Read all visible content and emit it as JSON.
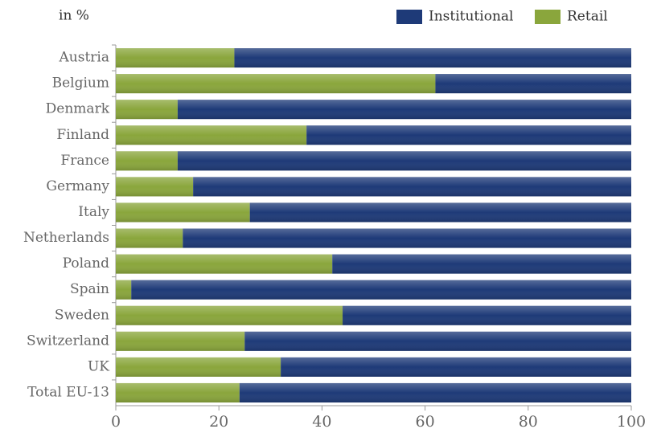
{
  "chart_data": {
    "type": "stacked-bar-horizontal",
    "y_axis_label": "in %",
    "categories": [
      "Austria",
      "Belgium",
      "Denmark",
      "Finland",
      "France",
      "Germany",
      "Italy",
      "Netherlands",
      "Poland",
      "Spain",
      "Sweden",
      "Switzerland",
      "UK",
      "Total EU-13"
    ],
    "series": [
      {
        "name": "Institutional",
        "color": "#1e3a78",
        "values": [
          77,
          38,
          88,
          63,
          88,
          85,
          74,
          87,
          58,
          97,
          56,
          75,
          68,
          76
        ]
      },
      {
        "name": "Retail",
        "color": "#8aa63c",
        "values": [
          23,
          62,
          12,
          37,
          12,
          15,
          26,
          13,
          42,
          3,
          44,
          25,
          32,
          24
        ]
      }
    ],
    "stack_order": [
      "Retail",
      "Institutional"
    ],
    "xlim": [
      0,
      100
    ],
    "xticks": [
      0,
      20,
      40,
      60,
      80,
      100
    ],
    "grid": false,
    "legend": "top-right"
  }
}
